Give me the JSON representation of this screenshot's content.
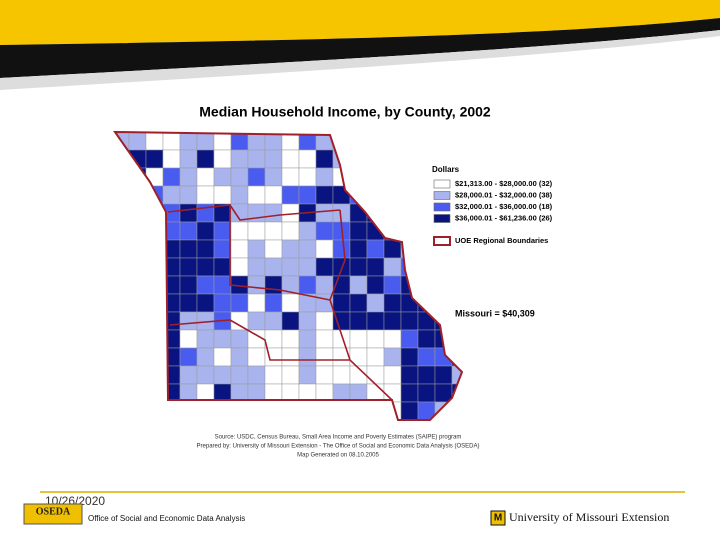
{
  "header": {
    "title": "Median Household Income, by County, 2002"
  },
  "legend": {
    "title": "Dollars",
    "items": [
      {
        "label": "$21,313.00 - $28,000.00 (32)",
        "color": "#ffffff"
      },
      {
        "label": "$28,000.01 - $32,000.00 (38)",
        "color": "#a9b4ee"
      },
      {
        "label": "$32,000.01 - $36,000.00 (18)",
        "color": "#4a5cf0"
      },
      {
        "label": "$36,000.01 - $61,236.00 (26)",
        "color": "#0a1480"
      }
    ],
    "boundary": "UOE Regional Boundaries"
  },
  "annotation": "Missouri = $40,309",
  "source": [
    "Source: USDC, Census Bureau, Small Area Income and Poverty Estimates (SAIPE) program",
    "Prepared by: University of Missouri Extension - The Office of Social and Economic Data Analysis (OSEDA)",
    "Map Generated on 08.10.2005"
  ],
  "footer": {
    "date": "10/26/2020",
    "logo_left": "OSEDA",
    "org": "Office of Social and Economic Data Analysis",
    "logo_right": "University of Missouri Extension"
  }
}
